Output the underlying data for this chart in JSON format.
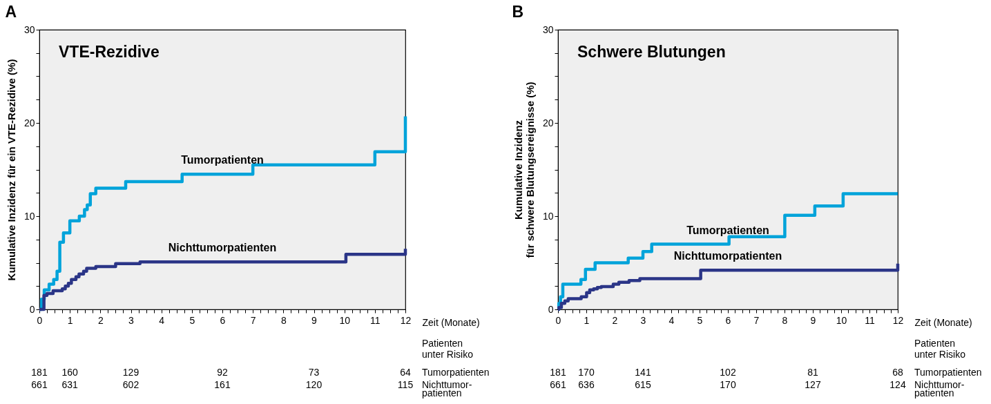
{
  "chart_data": [
    {
      "type": "step",
      "title": "A",
      "subtitle": "VTE-Rezidive",
      "xlabel": "Zeit (Monate)",
      "ylabel": "Kumulative Inzidenz für ein VTE-Rezidive (%)",
      "xlim": [
        0,
        12
      ],
      "ylim": [
        0,
        30
      ],
      "xticks": [
        0,
        {
          "value": 0.25,
          "label": null
        },
        {
          "value": 0.5,
          "label": null
        },
        {
          "value": 0.75,
          "label": null
        },
        1,
        {
          "value": 1.25,
          "label": null
        },
        {
          "value": 1.5,
          "label": null
        },
        {
          "value": 1.75,
          "label": null
        },
        2,
        {
          "value": 2.25,
          "label": null
        },
        {
          "value": 2.5,
          "label": null
        },
        {
          "value": 2.75,
          "label": null
        },
        3,
        {
          "value": 3.25,
          "label": null
        },
        {
          "value": 3.5,
          "label": null
        },
        {
          "value": 3.75,
          "label": null
        },
        4,
        {
          "value": 4.25,
          "label": null
        },
        {
          "value": 4.5,
          "label": null
        },
        {
          "value": 4.75,
          "label": null
        },
        5,
        {
          "value": 5.25,
          "label": null
        },
        {
          "value": 5.5,
          "label": null
        },
        {
          "value": 5.75,
          "label": null
        },
        6,
        {
          "value": 6.25,
          "label": null
        },
        {
          "value": 6.5,
          "label": null
        },
        {
          "value": 6.75,
          "label": null
        },
        7,
        {
          "value": 7.25,
          "label": null
        },
        {
          "value": 7.5,
          "label": null
        },
        {
          "value": 7.75,
          "label": null
        },
        8,
        {
          "value": 8.25,
          "label": null
        },
        {
          "value": 8.5,
          "label": null
        },
        {
          "value": 8.75,
          "label": null
        },
        9,
        {
          "value": 9.25,
          "label": null
        },
        {
          "value": 9.5,
          "label": null
        },
        {
          "value": 9.75,
          "label": null
        },
        10,
        {
          "value": 10.25,
          "label": null
        },
        {
          "value": 10.5,
          "label": null
        },
        {
          "value": 10.75,
          "label": null
        },
        11,
        {
          "value": 11.25,
          "label": null
        },
        {
          "value": 11.5,
          "label": null
        },
        {
          "value": 11.75,
          "label": null
        },
        12
      ],
      "yticks": [
        0,
        {
          "value": 2.5,
          "label": null
        },
        {
          "value": 5,
          "label": null
        },
        {
          "value": 7.5,
          "label": null
        },
        10,
        {
          "value": 12.5,
          "label": null
        },
        {
          "value": 15,
          "label": null
        },
        {
          "value": 17.5,
          "label": null
        },
        20,
        {
          "value": 22.5,
          "label": null
        },
        {
          "value": 25,
          "label": null
        },
        {
          "value": 27.5,
          "label": null
        },
        30
      ],
      "series": [
        {
          "name": "Tumorpatienten",
          "color": "#00a3da",
          "x": [
            0,
            0.07,
            0.16,
            0.32,
            0.47,
            0.58,
            0.67,
            0.79,
            1.0,
            1.31,
            1.48,
            1.57,
            1.67,
            1.85,
            2.83,
            4.68,
            7.0,
            11.0,
            12.0
          ],
          "values": [
            0,
            1.1,
            2.1,
            2.7,
            3.2,
            4.1,
            7.2,
            8.2,
            9.5,
            10.0,
            10.7,
            11.2,
            12.4,
            13.0,
            13.7,
            14.5,
            15.5,
            16.9,
            20.7
          ]
        },
        {
          "name": "Nichttumorpatienten",
          "color": "#2b3587",
          "x": [
            0,
            0.15,
            0.25,
            0.45,
            0.75,
            0.85,
            0.95,
            1.05,
            1.2,
            1.3,
            1.45,
            1.55,
            1.85,
            2.5,
            3.3,
            10.05,
            12.0
          ],
          "values": [
            0,
            1.5,
            1.7,
            2.0,
            2.2,
            2.5,
            2.8,
            3.2,
            3.5,
            3.8,
            4.1,
            4.4,
            4.6,
            4.9,
            5.1,
            5.9,
            6.5
          ]
        }
      ],
      "annotations": [
        "Patienten\nunter Risiko",
        "181",
        "160",
        "129",
        "92",
        "73",
        "64",
        "Tumorpatienten",
        "661",
        "631",
        "602",
        "161",
        "120",
        "115",
        "Nichttumor-\npatienten"
      ]
    },
    {
      "type": "step",
      "title": "B",
      "subtitle": "Schwere Blutungen",
      "xlabel": "Zeit (Monate)",
      "ylabel": "Kumulative Inzidenz\nfür schwere Blutungsereignisse (%)",
      "xlim": [
        0,
        12
      ],
      "ylim": [
        0,
        30
      ],
      "xticks": [
        0,
        {
          "value": 0.25,
          "label": null
        },
        {
          "value": 0.5,
          "label": null
        },
        {
          "value": 0.75,
          "label": null
        },
        1,
        {
          "value": 1.25,
          "label": null
        },
        {
          "value": 1.5,
          "label": null
        },
        {
          "value": 1.75,
          "label": null
        },
        2,
        {
          "value": 2.25,
          "label": null
        },
        {
          "value": 2.5,
          "label": null
        },
        {
          "value": 2.75,
          "label": null
        },
        3,
        {
          "value": 3.25,
          "label": null
        },
        {
          "value": 3.5,
          "label": null
        },
        {
          "value": 3.75,
          "label": null
        },
        4,
        {
          "value": 4.25,
          "label": null
        },
        {
          "value": 4.5,
          "label": null
        },
        {
          "value": 4.75,
          "label": null
        },
        5,
        {
          "value": 5.25,
          "label": null
        },
        {
          "value": 5.5,
          "label": null
        },
        {
          "value": 5.75,
          "label": null
        },
        6,
        {
          "value": 6.25,
          "label": null
        },
        {
          "value": 6.5,
          "label": null
        },
        {
          "value": 6.75,
          "label": null
        },
        7,
        {
          "value": 7.25,
          "label": null
        },
        {
          "value": 7.5,
          "label": null
        },
        {
          "value": 7.75,
          "label": null
        },
        8,
        {
          "value": 8.25,
          "label": null
        },
        {
          "value": 8.5,
          "label": null
        },
        {
          "value": 8.75,
          "label": null
        },
        9,
        {
          "value": 9.25,
          "label": null
        },
        {
          "value": 9.5,
          "label": null
        },
        {
          "value": 9.75,
          "label": null
        },
        10,
        {
          "value": 10.25,
          "label": null
        },
        {
          "value": 10.5,
          "label": null
        },
        {
          "value": 10.75,
          "label": null
        },
        11,
        {
          "value": 11.25,
          "label": null
        },
        {
          "value": 11.5,
          "label": null
        },
        {
          "value": 11.75,
          "label": null
        },
        12
      ],
      "yticks": [
        0,
        {
          "value": 2.5,
          "label": null
        },
        {
          "value": 5,
          "label": null
        },
        {
          "value": 7.5,
          "label": null
        },
        10,
        {
          "value": 12.5,
          "label": null
        },
        {
          "value": 15,
          "label": null
        },
        {
          "value": 17.5,
          "label": null
        },
        20,
        {
          "value": 22.5,
          "label": null
        },
        {
          "value": 25,
          "label": null
        },
        {
          "value": 27.5,
          "label": null
        },
        30
      ],
      "series": [
        {
          "name": "Tumorpatienten",
          "color": "#00a3da",
          "x": [
            0,
            0.03,
            0.09,
            0.17,
            0.81,
            0.97,
            1.31,
            2.48,
            3.0,
            3.31,
            6.04,
            8.01,
            9.07,
            10.07,
            12.0
          ],
          "values": [
            0,
            0.65,
            1.35,
            2.7,
            3.2,
            4.3,
            5.0,
            5.5,
            6.2,
            7.0,
            7.8,
            10.1,
            11.1,
            12.4,
            12.4
          ]
        },
        {
          "name": "Nichttumorpatienten",
          "color": "#2b3587",
          "x": [
            0,
            0.03,
            0.12,
            0.24,
            0.36,
            0.82,
            1.01,
            1.12,
            1.26,
            1.39,
            1.53,
            1.95,
            2.15,
            2.51,
            2.89,
            5.04,
            12.0
          ],
          "values": [
            0,
            0.2,
            0.65,
            0.9,
            1.15,
            1.35,
            1.8,
            2.1,
            2.2,
            2.35,
            2.45,
            2.7,
            2.9,
            3.1,
            3.3,
            4.2,
            4.9
          ]
        }
      ],
      "annotations": [
        "Patienten\nunter Risiko",
        "181",
        "170",
        "141",
        "102",
        "81",
        "68",
        "Tumorpatienten",
        "661",
        "636",
        "615",
        "170",
        "127",
        "124",
        "Nichttumor-\npatienten"
      ]
    }
  ]
}
